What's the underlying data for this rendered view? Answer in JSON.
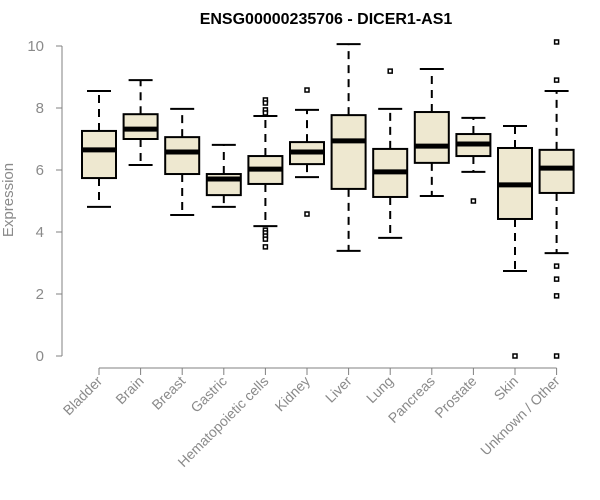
{
  "chart_data": {
    "type": "boxplot",
    "title": "ENSG00000235706 - DICER1-AS1",
    "xlabel": "",
    "ylabel": "Expression",
    "ylim": [
      0,
      10
    ],
    "yticks": [
      "0",
      "2",
      "4",
      "6",
      "8",
      "10"
    ],
    "grid": false,
    "legend": "none",
    "box_fill": "#EEE8D0",
    "box_stroke": "#000000",
    "axis_color": "#808080",
    "categories": [
      "Bladder",
      "Brain",
      "Breast",
      "Gastric",
      "Hematopoietic cells",
      "Kidney",
      "Liver",
      "Lung",
      "Pancreas",
      "Prostate",
      "Skin",
      "Unknown / Other"
    ],
    "boxes": [
      {
        "name": "Bladder",
        "whisker_low": 4.81,
        "q1": 5.74,
        "median": 6.65,
        "q3": 7.26,
        "whisker_high": 8.55,
        "outliers": []
      },
      {
        "name": "Brain",
        "whisker_low": 6.16,
        "q1": 7.0,
        "median": 7.32,
        "q3": 7.8,
        "whisker_high": 8.9,
        "outliers": []
      },
      {
        "name": "Breast",
        "whisker_low": 4.55,
        "q1": 5.87,
        "median": 6.58,
        "q3": 7.06,
        "whisker_high": 7.97,
        "outliers": []
      },
      {
        "name": "Gastric",
        "whisker_low": 4.81,
        "q1": 5.19,
        "median": 5.71,
        "q3": 5.87,
        "whisker_high": 6.81,
        "outliers": []
      },
      {
        "name": "Hematopoietic cells",
        "whisker_low": 4.19,
        "q1": 5.55,
        "median": 6.03,
        "q3": 6.45,
        "whisker_high": 7.74,
        "outliers": [
          8.26,
          8.16,
          7.94,
          7.84,
          4.06,
          3.97,
          3.87,
          3.77,
          3.52
        ]
      },
      {
        "name": "Kidney",
        "whisker_low": 5.77,
        "q1": 6.19,
        "median": 6.58,
        "q3": 6.9,
        "whisker_high": 7.94,
        "outliers": [
          8.58,
          4.58
        ]
      },
      {
        "name": "Liver",
        "whisker_low": 3.39,
        "q1": 5.39,
        "median": 6.94,
        "q3": 7.77,
        "whisker_high": 10.06,
        "outliers": []
      },
      {
        "name": "Lung",
        "whisker_low": 3.81,
        "q1": 5.13,
        "median": 5.94,
        "q3": 6.68,
        "whisker_high": 7.97,
        "outliers": [
          9.19
        ]
      },
      {
        "name": "Pancreas",
        "whisker_low": 5.16,
        "q1": 6.23,
        "median": 6.77,
        "q3": 7.87,
        "whisker_high": 9.26,
        "outliers": []
      },
      {
        "name": "Prostate",
        "whisker_low": 5.94,
        "q1": 6.45,
        "median": 6.84,
        "q3": 7.16,
        "whisker_high": 7.68,
        "outliers": [
          5.0
        ]
      },
      {
        "name": "Skin",
        "whisker_low": 2.74,
        "q1": 4.42,
        "median": 5.52,
        "q3": 6.71,
        "whisker_high": 7.42,
        "outliers": [
          0.0
        ]
      },
      {
        "name": "Unknown / Other",
        "whisker_low": 3.32,
        "q1": 5.26,
        "median": 6.06,
        "q3": 6.65,
        "whisker_high": 8.55,
        "outliers": [
          10.13,
          8.9,
          2.9,
          2.48,
          1.94,
          0.0
        ]
      }
    ]
  }
}
